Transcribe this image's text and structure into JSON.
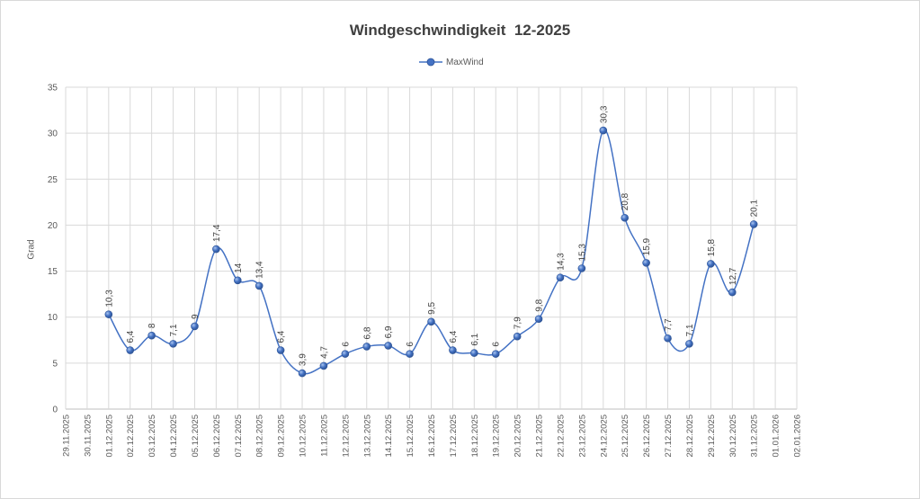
{
  "chart_data": {
    "type": "line",
    "title": "Windgeschwindigkeit  12-2025",
    "ylabel": "Grad",
    "ylim": [
      0,
      35
    ],
    "yticks": [
      0,
      5,
      10,
      15,
      20,
      25,
      30,
      35
    ],
    "xticks": [
      "29.11.2025",
      "30.11.2025",
      "01.12.2025",
      "02.12.2025",
      "03.12.2025",
      "04.12.2025",
      "05.12.2025",
      "06.12.2025",
      "07.12.2025",
      "08.12.2025",
      "09.12.2025",
      "10.12.2025",
      "11.12.2025",
      "12.12.2025",
      "13.12.2025",
      "14.12.2025",
      "15.12.2025",
      "16.12.2025",
      "17.12.2025",
      "18.12.2025",
      "19.12.2025",
      "20.12.2025",
      "21.12.2025",
      "22.12.2025",
      "23.12.2025",
      "24.12.2025",
      "25.12.2025",
      "26.12.2025",
      "27.12.2025",
      "28.12.2025",
      "29.12.2025",
      "30.12.2025",
      "31.12.2025",
      "01.01.2026",
      "02.01.2026"
    ],
    "grid": true,
    "legend_position": "top",
    "series": [
      {
        "name": "MaxWind",
        "color": "#4472c4",
        "x": [
          "01.12.2025",
          "02.12.2025",
          "03.12.2025",
          "04.12.2025",
          "05.12.2025",
          "06.12.2025",
          "07.12.2025",
          "08.12.2025",
          "09.12.2025",
          "10.12.2025",
          "11.12.2025",
          "12.12.2025",
          "13.12.2025",
          "14.12.2025",
          "15.12.2025",
          "16.12.2025",
          "17.12.2025",
          "18.12.2025",
          "19.12.2025",
          "20.12.2025",
          "21.12.2025",
          "22.12.2025",
          "23.12.2025",
          "24.12.2025",
          "25.12.2025",
          "26.12.2025",
          "27.12.2025",
          "28.12.2025",
          "29.12.2025",
          "30.12.2025",
          "31.12.2025"
        ],
        "values": [
          10.3,
          6.4,
          8,
          7.1,
          9,
          17.4,
          14,
          13.4,
          6.4,
          3.9,
          4.7,
          6,
          6.8,
          6.9,
          6,
          9.5,
          6.4,
          6.1,
          6,
          7.9,
          9.8,
          14.3,
          15.3,
          30.3,
          20.8,
          15.9,
          7.7,
          7.1,
          15.8,
          12.7,
          20.1
        ],
        "labels": [
          "10,3",
          "6,4",
          "8",
          "7,1",
          "9",
          "17,4",
          "14",
          "13,4",
          "6,4",
          "3,9",
          "4,7",
          "6",
          "6,8",
          "6,9",
          "6",
          "9,5",
          "6,4",
          "6,1",
          "6",
          "7,9",
          "9,8",
          "14,3",
          "15,3",
          "30,3",
          "20,8",
          "15,9",
          "7,7",
          "7,1",
          "15,8",
          "12,7",
          "20,1"
        ]
      }
    ]
  }
}
